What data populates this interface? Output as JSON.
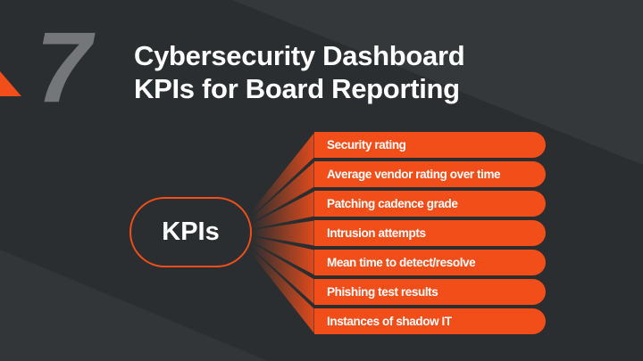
{
  "number": "7",
  "title_lines": [
    "Cybersecurity Dashboard",
    "KPIs for Board Reporting"
  ],
  "hub_label": "KPIs",
  "items": [
    "Security rating",
    "Average vendor rating over time",
    "Patching cadence grade",
    "Intrusion attempts",
    "Mean time to detect/resolve",
    "Phishing test results",
    "Instances of shadow IT"
  ],
  "colors": {
    "background": "#2b2e30",
    "accent": "#f24e1a",
    "number": "#74767a",
    "text": "#ffffff"
  }
}
